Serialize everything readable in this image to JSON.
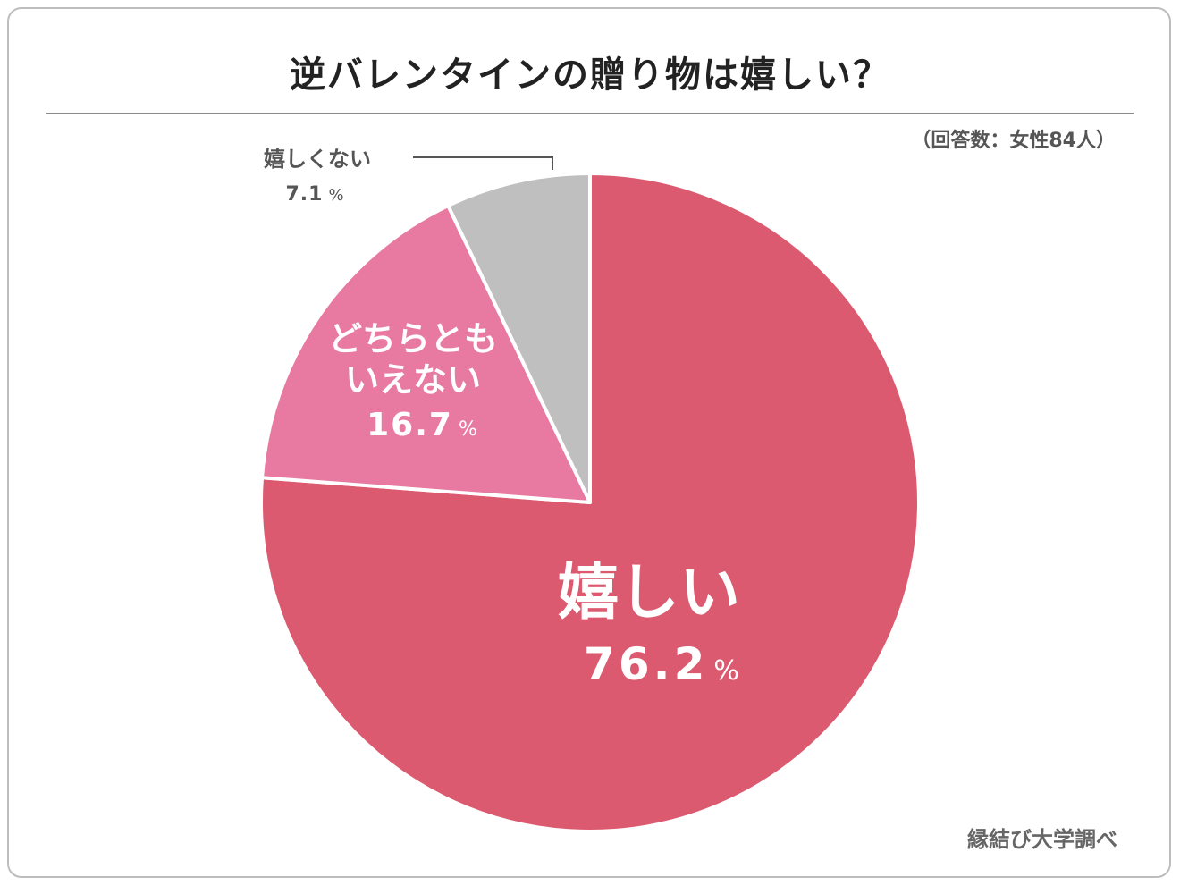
{
  "title": "逆バレンタインの贈り物は嬉しい？",
  "sample_note": "（回答数：女性84人）",
  "source_note": "縁結び大学調べ",
  "chart_data": {
    "type": "pie",
    "title": "逆バレンタインの贈り物は嬉しい？",
    "unit": "%",
    "slices": [
      {
        "label": "嬉しい",
        "value": 76.2,
        "value_text": "76.2",
        "color": "#dc5a6f",
        "label_color": "#ffffff"
      },
      {
        "label": "どちらとも\nいえない",
        "value": 16.7,
        "value_text": "16.7",
        "color": "#e879a0",
        "label_color": "#ffffff"
      },
      {
        "label": "嬉しくない",
        "value": 7.1,
        "value_text": "7.1",
        "color": "#bfbfbf",
        "label_color": "#555555"
      }
    ],
    "start": "12 o'clock",
    "direction": "clockwise",
    "slice_border_color": "#ffffff",
    "leader_line_color": "#555555"
  }
}
